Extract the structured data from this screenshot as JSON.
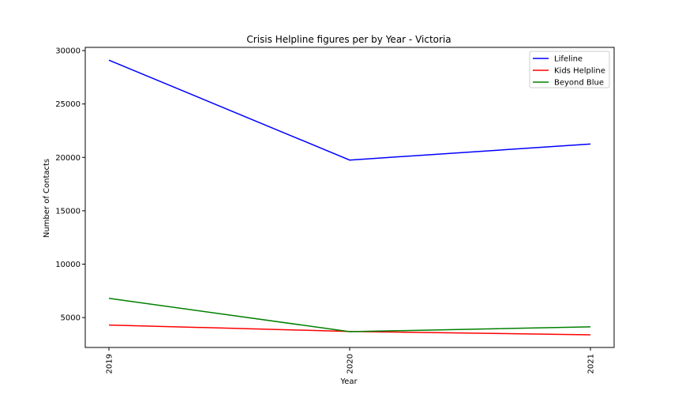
{
  "chart_data": {
    "type": "line",
    "title": "Crisis Helpline figures per by Year - Victoria",
    "xlabel": "Year",
    "ylabel": "Number of Contacts",
    "categories": [
      "2019",
      "2020",
      "2021"
    ],
    "yticks": [
      "5000",
      "10000",
      "15000",
      "20000",
      "25000",
      "30000"
    ],
    "ylim": [
      2200,
      30300
    ],
    "grid": false,
    "legend_position": "top-right",
    "series": [
      {
        "name": "Lifeline",
        "color": "#0000ff",
        "values": [
          29100,
          19750,
          21250
        ]
      },
      {
        "name": "Kids Helpline",
        "color": "#ff0000",
        "values": [
          4300,
          3700,
          3380
        ]
      },
      {
        "name": "Beyond Blue",
        "color": "#008000",
        "values": [
          6800,
          3680,
          4130
        ]
      }
    ]
  }
}
